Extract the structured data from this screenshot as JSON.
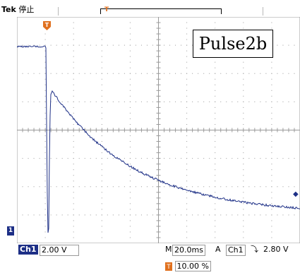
{
  "header": {
    "brand": "Tek",
    "acquisition_state": "停止"
  },
  "annotation": {
    "label": "Pulse2b"
  },
  "status_bar": {
    "channel": "Ch1",
    "volts_per_div": "2.00 V",
    "timebase_prefix": "M",
    "timebase": "20.0ms",
    "trigger_mode": "A",
    "trigger_source": "Ch1",
    "trigger_slope_symbol": "⤵",
    "trigger_level": "2.80 V"
  },
  "horizontal_position": {
    "marker": "T",
    "value": "10.00 %"
  },
  "markers": {
    "ground_label": "1",
    "trigger_marker": "T"
  },
  "colors": {
    "trace": "#1d2f86",
    "grid": "#9a9a9a",
    "trigger_marker": "#e0701e"
  }
}
